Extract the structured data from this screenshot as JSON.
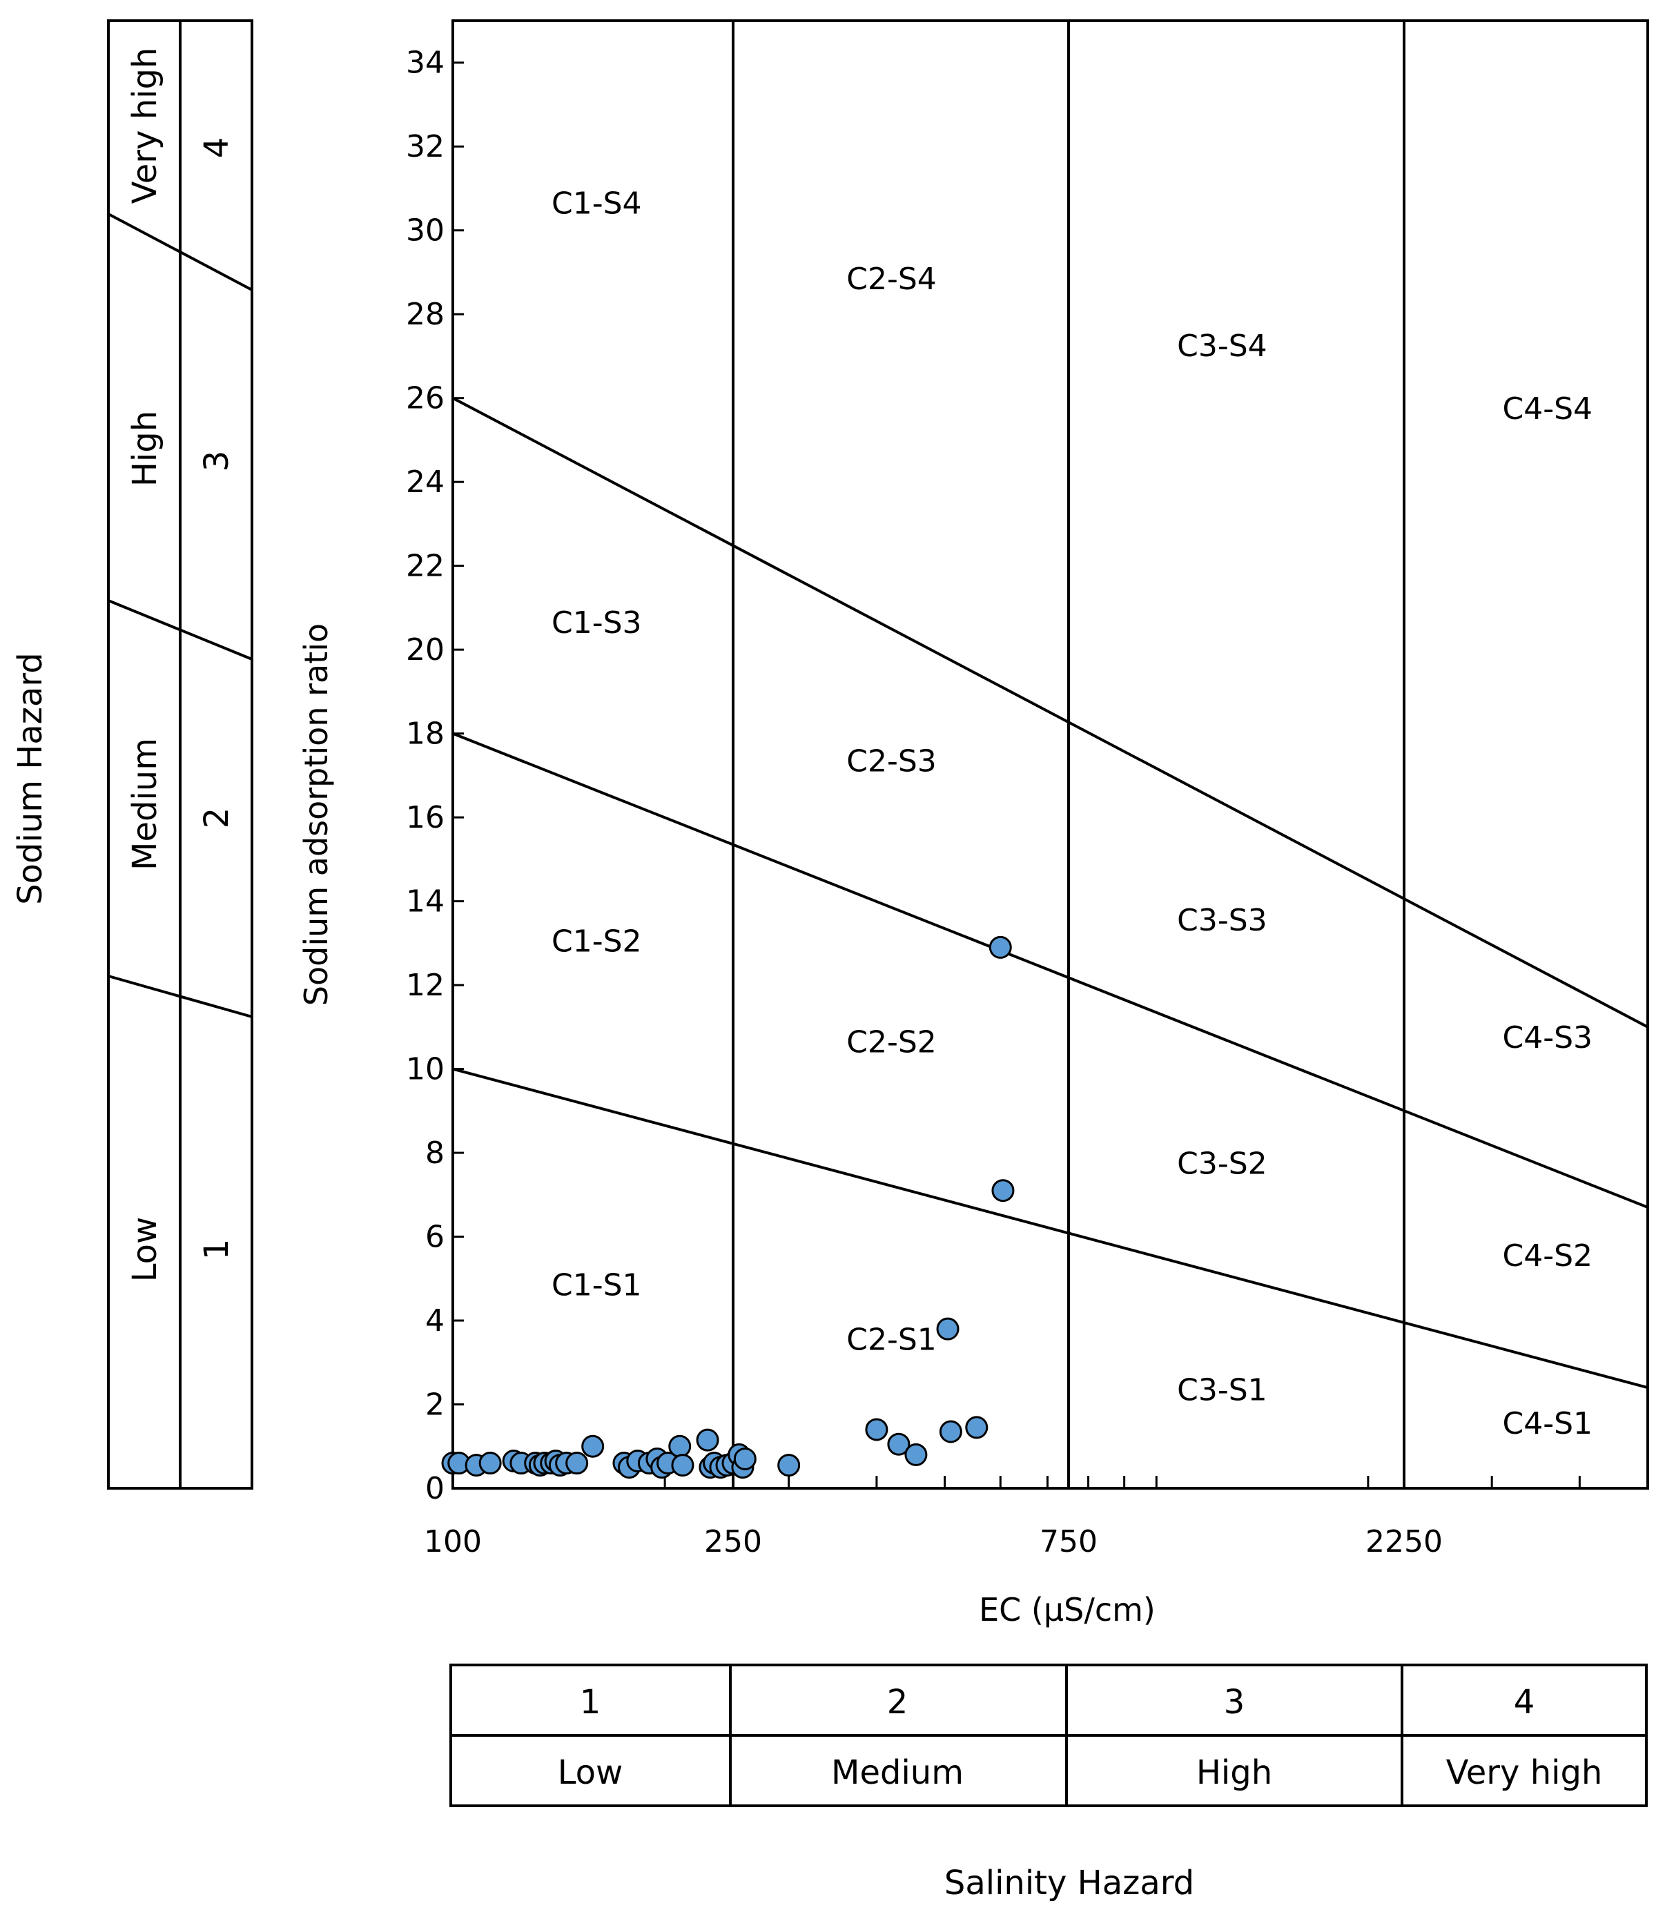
{
  "chart_data": {
    "type": "scatter",
    "xlabel": "EC (µS/cm)",
    "ylabel": "Sodium adsorption ratio",
    "xscale": "log",
    "xlim": [
      100,
      5000
    ],
    "ylim": [
      0,
      35
    ],
    "x_ticks": [
      100,
      250,
      750,
      2250
    ],
    "y_ticks": [
      0,
      2,
      4,
      6,
      8,
      10,
      12,
      14,
      16,
      18,
      20,
      22,
      24,
      26,
      28,
      30,
      32,
      34
    ],
    "salinity_boundaries": [
      250,
      750,
      2250
    ],
    "sar_boundaries": [
      {
        "x": [
          100,
          5000
        ],
        "y": [
          10,
          2.4
        ]
      },
      {
        "x": [
          100,
          5000
        ],
        "y": [
          18,
          6.7
        ]
      },
      {
        "x": [
          100,
          5000
        ],
        "y": [
          26,
          11
        ]
      }
    ],
    "zone_labels": [
      {
        "label": "C1-S4",
        "x": 160,
        "y": 30.4
      },
      {
        "label": "C2-S4",
        "x": 420,
        "y": 28.6
      },
      {
        "label": "C3-S4",
        "x": 1240,
        "y": 27.0
      },
      {
        "label": "C4-S4",
        "x": 3600,
        "y": 25.5
      },
      {
        "label": "C1-S3",
        "x": 160,
        "y": 20.4
      },
      {
        "label": "C2-S3",
        "x": 420,
        "y": 17.1
      },
      {
        "label": "C3-S3",
        "x": 1240,
        "y": 13.3
      },
      {
        "label": "C4-S3",
        "x": 3600,
        "y": 10.5
      },
      {
        "label": "C1-S2",
        "x": 160,
        "y": 12.8
      },
      {
        "label": "C2-S2",
        "x": 420,
        "y": 10.4
      },
      {
        "label": "C3-S2",
        "x": 1240,
        "y": 7.5
      },
      {
        "label": "C4-S2",
        "x": 3600,
        "y": 5.3
      },
      {
        "label": "C1-S1",
        "x": 160,
        "y": 4.6
      },
      {
        "label": "C2-S1",
        "x": 420,
        "y": 3.3
      },
      {
        "label": "C3-S1",
        "x": 1240,
        "y": 2.1
      },
      {
        "label": "C4-S1",
        "x": 3600,
        "y": 1.3
      }
    ],
    "points": [
      {
        "x": 100,
        "y": 0.6
      },
      {
        "x": 102,
        "y": 0.6
      },
      {
        "x": 108,
        "y": 0.55
      },
      {
        "x": 113,
        "y": 0.6
      },
      {
        "x": 122,
        "y": 0.65
      },
      {
        "x": 125,
        "y": 0.6
      },
      {
        "x": 131,
        "y": 0.6
      },
      {
        "x": 133,
        "y": 0.55
      },
      {
        "x": 135,
        "y": 0.6
      },
      {
        "x": 138,
        "y": 0.6
      },
      {
        "x": 140,
        "y": 0.65
      },
      {
        "x": 142,
        "y": 0.55
      },
      {
        "x": 145,
        "y": 0.6
      },
      {
        "x": 150,
        "y": 0.6
      },
      {
        "x": 158,
        "y": 1.0
      },
      {
        "x": 175,
        "y": 0.6
      },
      {
        "x": 178,
        "y": 0.5
      },
      {
        "x": 183,
        "y": 0.65
      },
      {
        "x": 190,
        "y": 0.6
      },
      {
        "x": 195,
        "y": 0.7
      },
      {
        "x": 198,
        "y": 0.5
      },
      {
        "x": 202,
        "y": 0.6
      },
      {
        "x": 210,
        "y": 1.0
      },
      {
        "x": 212,
        "y": 0.55
      },
      {
        "x": 230,
        "y": 1.15
      },
      {
        "x": 232,
        "y": 0.5
      },
      {
        "x": 235,
        "y": 0.6
      },
      {
        "x": 240,
        "y": 0.5
      },
      {
        "x": 245,
        "y": 0.55
      },
      {
        "x": 250,
        "y": 0.6
      },
      {
        "x": 255,
        "y": 0.8
      },
      {
        "x": 258,
        "y": 0.5
      },
      {
        "x": 260,
        "y": 0.7
      },
      {
        "x": 300,
        "y": 0.55
      },
      {
        "x": 400,
        "y": 1.4
      },
      {
        "x": 430,
        "y": 1.05
      },
      {
        "x": 455,
        "y": 0.8
      },
      {
        "x": 505,
        "y": 3.8
      },
      {
        "x": 510,
        "y": 1.35
      },
      {
        "x": 555,
        "y": 1.45
      },
      {
        "x": 600,
        "y": 12.9
      },
      {
        "x": 605,
        "y": 7.1
      }
    ]
  },
  "salinity_hazard": {
    "title": "Salinity Hazard",
    "bands": [
      {
        "number": "1",
        "label": "Low"
      },
      {
        "number": "2",
        "label": "Medium"
      },
      {
        "number": "3",
        "label": "High"
      },
      {
        "number": "4",
        "label": "Very high"
      }
    ]
  },
  "sodium_hazard": {
    "title": "Sodium Hazard",
    "bands": [
      {
        "number": "1",
        "label": "Low"
      },
      {
        "number": "2",
        "label": "Medium"
      },
      {
        "number": "3",
        "label": "High"
      },
      {
        "number": "4",
        "label": "Very high"
      }
    ]
  },
  "colors": {
    "point_fill": "#5b9bd5",
    "line": "#000000"
  }
}
